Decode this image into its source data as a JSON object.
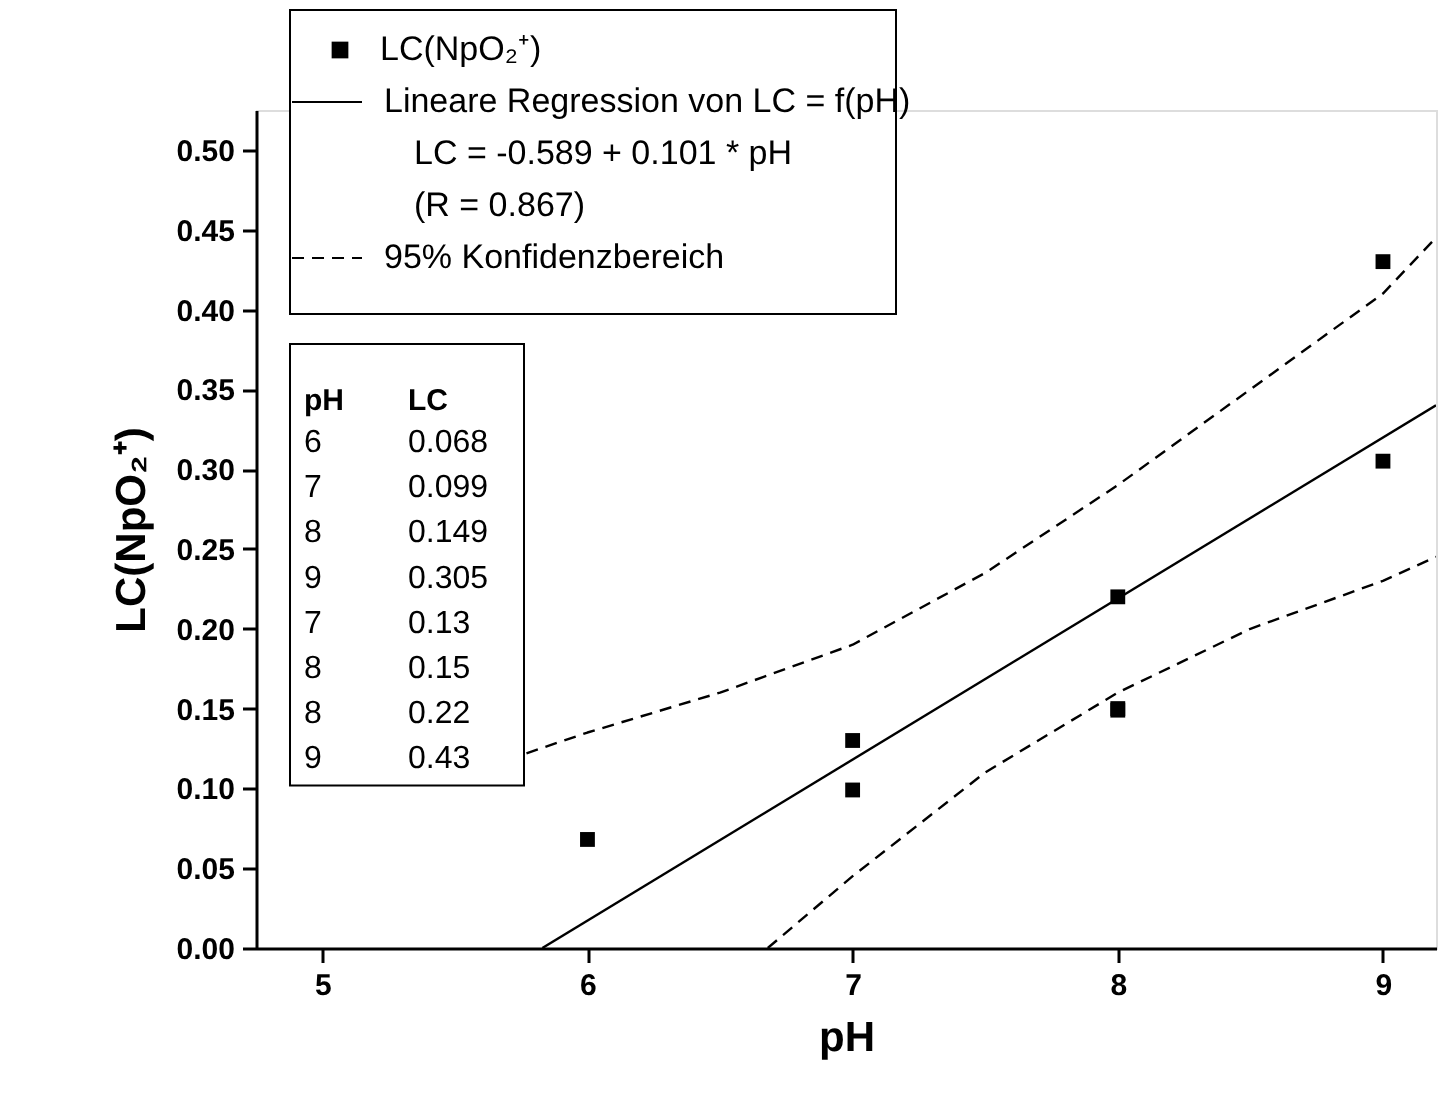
{
  "chart_data": {
    "type": "scatter",
    "xlabel": "pH",
    "ylabel": "LC(NpO₂⁺)",
    "xlim": [
      4.75,
      9.2
    ],
    "ylim": [
      0,
      0.525
    ],
    "xticks": [
      5,
      6,
      7,
      8,
      9
    ],
    "yticks": [
      {
        "value": 0,
        "label": "0.00"
      },
      {
        "value": 0.05,
        "label": "0.05"
      },
      {
        "value": 0.1,
        "label": "0.10"
      },
      {
        "value": 0.15,
        "label": "0.15"
      },
      {
        "value": 0.2,
        "label": "0.20"
      },
      {
        "value": 0.25,
        "label": "0.25"
      },
      {
        "value": 0.3,
        "label": "0.30"
      },
      {
        "value": 0.35,
        "label": "0.35"
      },
      {
        "value": 0.4,
        "label": "0.40"
      },
      {
        "value": 0.45,
        "label": "0.45"
      },
      {
        "value": 0.5,
        "label": "0.50"
      }
    ],
    "x": [
      6,
      7,
      8,
      9,
      7,
      8,
      8,
      9
    ],
    "grid": false,
    "legend": "top left",
    "annotations": [
      "LC = -0.589 + 0.101 * pH",
      "(R = 0.867)",
      "pH",
      "LC",
      "6",
      "0.068",
      "7",
      "0.099",
      "8",
      "0.149",
      "9",
      "0.305",
      "7",
      "0.13",
      "8",
      "0.15",
      "8",
      "0.22",
      "9",
      "0.43"
    ],
    "series": [
      {
        "name": "LC(NpO₂⁺)",
        "marker": "square",
        "color": "#000000",
        "values": [
          0.068,
          0.099,
          0.149,
          0.305,
          0.13,
          0.15,
          0.22,
          0.43
        ]
      },
      {
        "name": "Lineare Regression von LC = f(pH)",
        "type": "line",
        "line_style": "solid",
        "color": "#000000",
        "x": [
          5.83,
          9.2
        ],
        "values": [
          0,
          0.34
        ]
      },
      {
        "name": "95% Konfidenzbereich",
        "type": "line",
        "line_style": "dashed",
        "color": "#000000",
        "x": [
          5.77,
          6,
          6.5,
          7,
          7.5,
          8,
          8.5,
          9,
          9.2
        ],
        "values": [
          0.122,
          0.135,
          0.16,
          0.19,
          0.235,
          0.29,
          0.35,
          0.41,
          0.445
        ]
      },
      {
        "type": "line",
        "line_style": "dashed",
        "color": "#000000",
        "x": [
          6.68,
          7,
          7.5,
          8,
          8.5,
          9,
          9.2
        ],
        "values": [
          0,
          0.045,
          0.11,
          0.16,
          0.2,
          0.23,
          0.245
        ]
      }
    ]
  }
}
